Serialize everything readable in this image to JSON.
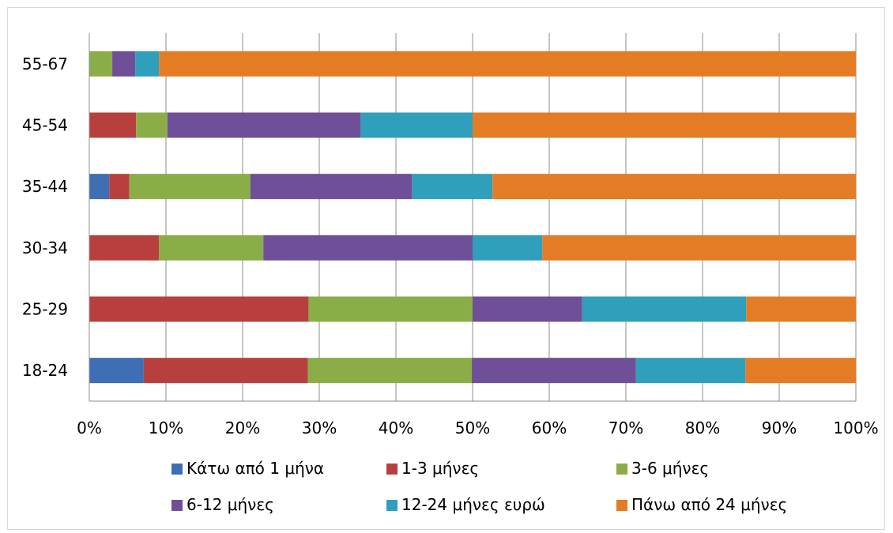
{
  "chart_data": {
    "type": "bar",
    "orientation": "horizontal",
    "stacked": "percent",
    "title": "",
    "xlabel": "",
    "ylabel": "",
    "categories": [
      "18-24",
      "25-29",
      "30-34",
      "35-44",
      "45-54",
      "55-67"
    ],
    "xlim": [
      0,
      100
    ],
    "x_ticks": [
      "0%",
      "10%",
      "20%",
      "30%",
      "40%",
      "50%",
      "60%",
      "70%",
      "80%",
      "90%",
      "100%"
    ],
    "grid": true,
    "legend_position": "bottom",
    "series": [
      {
        "name": "Κάτω από 1 μήνα",
        "color": "#3e6eb3",
        "values": [
          7.1,
          0,
          0,
          2.6,
          0,
          0
        ]
      },
      {
        "name": "1-3 μήνες",
        "color": "#b7403f",
        "values": [
          21.4,
          28.6,
          9.1,
          2.6,
          6.1,
          0
        ]
      },
      {
        "name": "3-6 μήνες",
        "color": "#8bad48",
        "values": [
          21.4,
          21.4,
          13.6,
          15.8,
          4.1,
          3.0
        ]
      },
      {
        "name": "6-12 μήνες",
        "color": "#6f4f98",
        "values": [
          21.4,
          14.3,
          27.3,
          21.1,
          25.2,
          3.0
        ]
      },
      {
        "name": "12-24 μήνες ευρώ",
        "color": "#2f9fbb",
        "values": [
          14.3,
          21.4,
          9.1,
          10.5,
          14.6,
          3.1
        ]
      },
      {
        "name": "Πάνω από 24 μήνες",
        "color": "#e47c26",
        "values": [
          14.4,
          14.3,
          40.9,
          47.4,
          50.0,
          90.9
        ]
      }
    ]
  }
}
